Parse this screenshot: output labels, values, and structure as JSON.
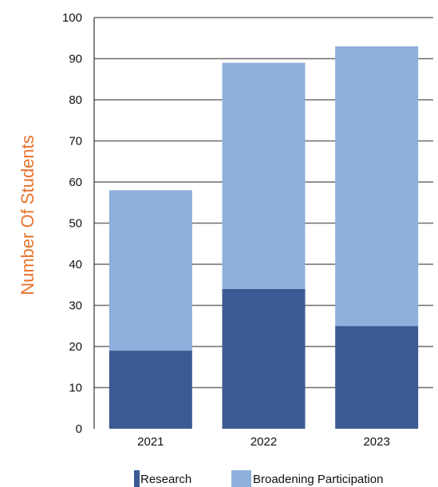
{
  "chart_data": {
    "type": "bar",
    "stacked": true,
    "title": "",
    "xlabel": "",
    "ylabel": "Number Of Students",
    "categories": [
      "2021",
      "2022",
      "2023"
    ],
    "series": [
      {
        "name": "Research",
        "values": [
          19,
          34,
          25
        ],
        "color": "#3b5a93"
      },
      {
        "name": "Broadening Participation",
        "values": [
          39,
          55,
          68
        ],
        "color": "#8eb0dc"
      }
    ],
    "ylim": [
      0,
      100
    ],
    "yticks": [
      0,
      10,
      20,
      30,
      40,
      50,
      60,
      70,
      80,
      90,
      100
    ],
    "grid": true,
    "legend_position": "bottom",
    "colors": {
      "ylabel": "#e8732c",
      "gridline": "#6e6e6e",
      "axis": "#333333"
    }
  }
}
